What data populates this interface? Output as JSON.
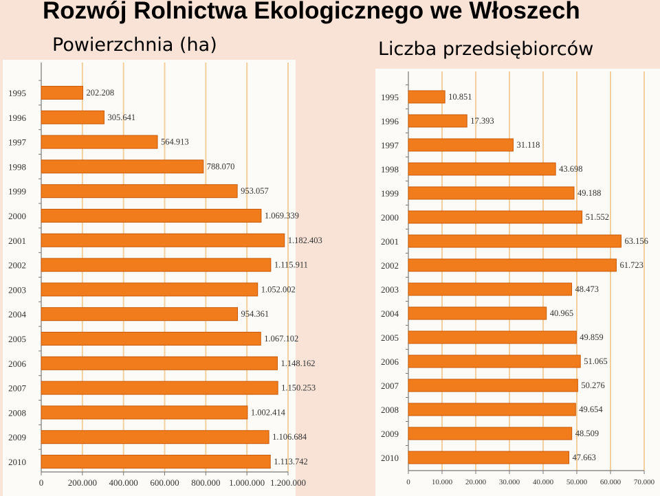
{
  "title": "Rozwój Rolnictwa Ekologicznego we Włoszech",
  "subtitles": {
    "left": "Powierzchnia (ha)",
    "right": "Liczba przedsiębiorców"
  },
  "colors": {
    "bar": "#f07c1c",
    "bar_edge": "#c85a0a",
    "grid": "#f2cf9c",
    "background": "#f9e3d6",
    "panel": "#fdfbf7"
  },
  "chart_data": [
    {
      "type": "bar",
      "orientation": "horizontal",
      "title": "Powierzchnia (ha)",
      "categories": [
        "1995",
        "1996",
        "1997",
        "1998",
        "1999",
        "2000",
        "2001",
        "2002",
        "2003",
        "2004",
        "2005",
        "2006",
        "2007",
        "2008",
        "2009",
        "2010"
      ],
      "values": [
        202208,
        305641,
        564913,
        788070,
        953057,
        1069339,
        1182403,
        1115911,
        1052002,
        954361,
        1067102,
        1148162,
        1150253,
        1002414,
        1106684,
        1113742
      ],
      "value_labels": [
        "202.208",
        "305.641",
        "564.913",
        "788.070",
        "953.057",
        "1.069.339",
        "1.182.403",
        "1.115.911",
        "1.052.002",
        "954.361",
        "1.067.102",
        "1.148.162",
        "1.150.253",
        "1.002.414",
        "1.106.684",
        "1.113.742"
      ],
      "xlim": [
        0,
        1200000
      ],
      "x_ticks": [
        0,
        200000,
        400000,
        600000,
        800000,
        1000000,
        1200000
      ],
      "x_tick_labels": [
        "0",
        "200.000",
        "400.000",
        "600.000",
        "800.000",
        "1.000.000",
        "1.200.000"
      ],
      "grid": true
    },
    {
      "type": "bar",
      "orientation": "horizontal",
      "title": "Liczba przedsiębiorców",
      "categories": [
        "1995",
        "1996",
        "1997",
        "1998",
        "1999",
        "2000",
        "2001",
        "2002",
        "2003",
        "2004",
        "2005",
        "2006",
        "2007",
        "2008",
        "2009",
        "2010"
      ],
      "values": [
        10851,
        17393,
        31118,
        43698,
        49188,
        51552,
        63156,
        61723,
        48473,
        40965,
        49859,
        51065,
        50276,
        49654,
        48509,
        47663
      ],
      "value_labels": [
        "10.851",
        "17.393",
        "31.118",
        "43.698",
        "49.188",
        "51.552",
        "63.156",
        "61.723",
        "48.473",
        "40.965",
        "49.859",
        "51.065",
        "50.276",
        "49.654",
        "48.509",
        "47.663"
      ],
      "xlim": [
        0,
        70000
      ],
      "x_ticks": [
        0,
        10000,
        20000,
        30000,
        40000,
        50000,
        60000,
        70000
      ],
      "x_tick_labels": [
        "0",
        "10.000",
        "20.000",
        "30.000",
        "40.000",
        "50.000",
        "60.000",
        "70.000"
      ],
      "grid": true
    }
  ]
}
